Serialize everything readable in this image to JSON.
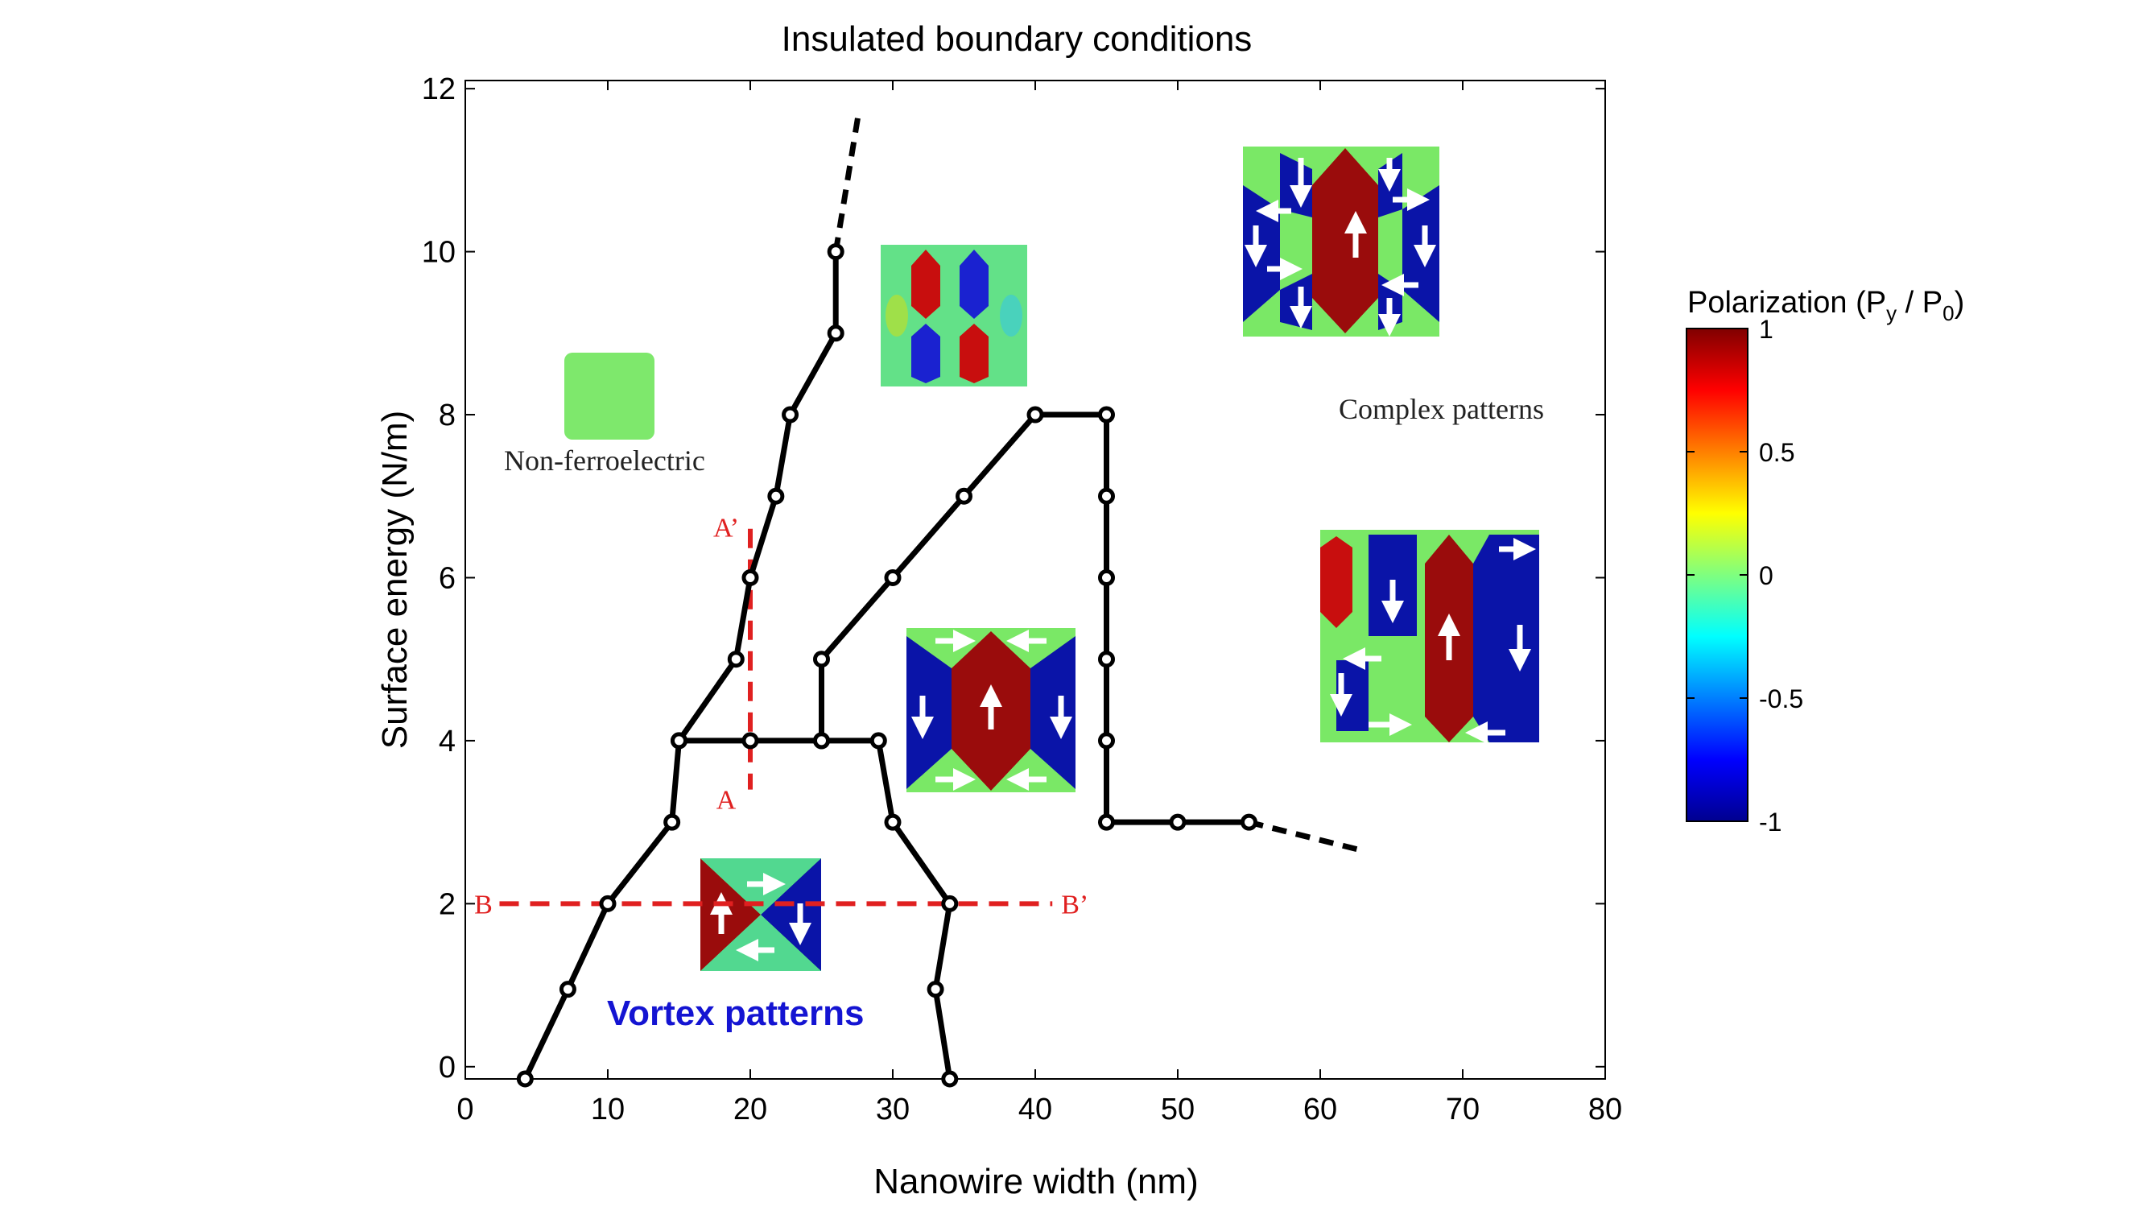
{
  "chart_data": {
    "type": "line",
    "title": "Insulated boundary conditions",
    "xlabel": "Nanowire width (nm)",
    "ylabel": "Surface energy (N/m)",
    "xlim": [
      0,
      80
    ],
    "ylim": [
      -0.15,
      12.1
    ],
    "xticks": [
      0,
      10,
      20,
      30,
      40,
      50,
      60,
      70,
      80
    ],
    "yticks": [
      0,
      2,
      4,
      6,
      8,
      10,
      12
    ],
    "grid": false,
    "series": [
      {
        "points": [
          [
            4.2,
            -0.15
          ],
          [
            7.2,
            0.95
          ],
          [
            10,
            2
          ],
          [
            14.5,
            3
          ],
          [
            15,
            4
          ],
          [
            19,
            5
          ],
          [
            20,
            6
          ],
          [
            21.8,
            7
          ],
          [
            22.8,
            8
          ],
          [
            26,
            9
          ],
          [
            26,
            10
          ]
        ],
        "extension": [
          [
            26,
            10
          ],
          [
            27.6,
            11.7
          ]
        ]
      },
      {
        "points": [
          [
            15,
            4
          ],
          [
            20,
            4
          ],
          [
            25,
            4
          ],
          [
            29,
            4
          ],
          [
            30,
            3
          ],
          [
            34,
            2
          ],
          [
            33,
            0.95
          ],
          [
            34,
            -0.15
          ]
        ]
      },
      {
        "points": [
          [
            25,
            4
          ],
          [
            25,
            5
          ],
          [
            30,
            6
          ],
          [
            35,
            7
          ],
          [
            40,
            8
          ],
          [
            45,
            8
          ],
          [
            45,
            7
          ],
          [
            45,
            6
          ],
          [
            45,
            5
          ],
          [
            45,
            4
          ],
          [
            45,
            3
          ],
          [
            50,
            3
          ],
          [
            55,
            3
          ]
        ],
        "extension": [
          [
            55,
            3
          ],
          [
            63,
            2.65
          ]
        ]
      }
    ],
    "cut_lines": [
      {
        "points": [
          [
            20,
            6.6
          ],
          [
            20,
            3.4
          ]
        ],
        "start_label": "A’",
        "end_label": "A"
      },
      {
        "points": [
          [
            2.4,
            2
          ],
          [
            41.2,
            2
          ]
        ],
        "start_label": "B",
        "end_label": "B’"
      }
    ],
    "region_labels": {
      "non_ferroelectric": "Non-ferroelectric",
      "vortex": "Vortex patterns",
      "complex": "Complex patterns"
    },
    "colorbar": {
      "title_main": "Polarization (P",
      "title_sub1": "y",
      "title_mid": " / P",
      "title_sub2": "0",
      "title_end": ")",
      "range": [
        -1,
        1
      ],
      "ticks": [
        {
          "value": 1,
          "label": "1"
        },
        {
          "value": 0.5,
          "label": "0.5"
        },
        {
          "value": 0,
          "label": "0"
        },
        {
          "value": -0.5,
          "label": "-0.5"
        },
        {
          "value": -1,
          "label": "-1"
        }
      ]
    },
    "insets": [
      {
        "name": "uniform",
        "desc": "Non-ferroelectric (P≈0)"
      },
      {
        "name": "antivortex",
        "desc": "four-lobe pattern"
      },
      {
        "name": "vortex-small",
        "desc": "single vortex"
      },
      {
        "name": "vortex-large",
        "desc": "elongated vortex"
      },
      {
        "name": "complex-top",
        "desc": "complex domains"
      },
      {
        "name": "complex-right",
        "desc": "complex domains"
      }
    ],
    "colors": {
      "line": "#000000",
      "cut_line": "#e02020",
      "vortex_label": "#1414d2",
      "red": "#9a0c0c",
      "blue": "#0a14a8",
      "green": "#7ae866",
      "cyan": "#38d2d2"
    }
  }
}
